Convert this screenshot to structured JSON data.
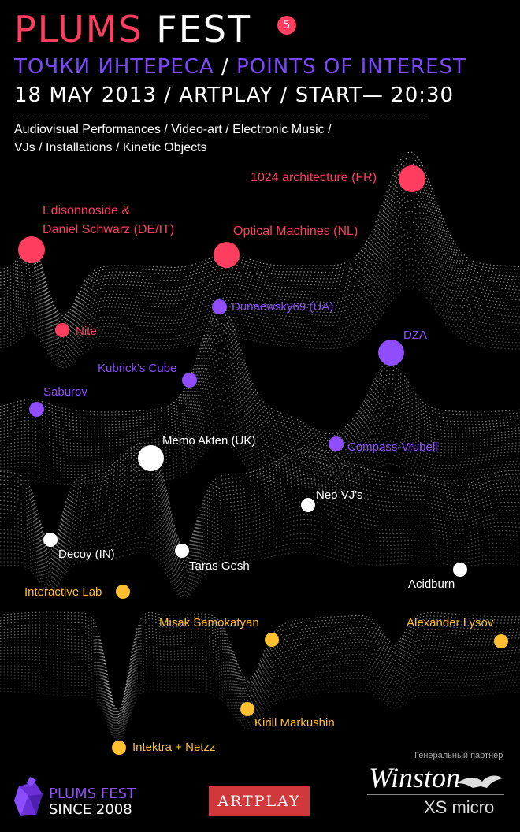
{
  "header": {
    "title_part1": "PLUMS",
    "title_part2": "FEST",
    "edition": "5",
    "subtitle_ru": "ТОЧКИ ИНТЕРЕСА",
    "subtitle_sep": "/",
    "subtitle_en": "POINTS OF INTEREST",
    "dateline": "18 MAY 2013 / ARTPLAY / START— 20:30",
    "description_line1": "Audiovisual Performances / Video-art / Electronic Music /",
    "description_line2": "VJs / Installations / Kinetic Objects"
  },
  "colors": {
    "red": "#ff3d5f",
    "purple": "#8f4dff",
    "white": "#ffffff",
    "yellow": "#ffbf2e"
  },
  "points": [
    {
      "label": "1024 architecture (FR)",
      "color": "red"
    },
    {
      "label": "Edisonnoside &",
      "color": "red"
    },
    {
      "label": "Daniel Schwarz (DE/IT)",
      "color": "red"
    },
    {
      "label": "Optical Machines (NL)",
      "color": "red"
    },
    {
      "label": "Nite",
      "color": "red"
    },
    {
      "label": "Dunaewsky69 (UA)",
      "color": "purple"
    },
    {
      "label": "DZA",
      "color": "purple"
    },
    {
      "label": "Kubrick's Cube",
      "color": "purple"
    },
    {
      "label": "Saburov",
      "color": "purple"
    },
    {
      "label": "Compass-Vrubell",
      "color": "purple"
    },
    {
      "label": "Memo Akten (UK)",
      "color": "white"
    },
    {
      "label": "Neo VJ's",
      "color": "white"
    },
    {
      "label": "Decoy (IN)",
      "color": "white"
    },
    {
      "label": "Taras Gesh",
      "color": "white"
    },
    {
      "label": "Acidburn",
      "color": "white"
    },
    {
      "label": "Interactive Lab",
      "color": "yellow"
    },
    {
      "label": "Misak Samokatyan",
      "color": "yellow"
    },
    {
      "label": "Alexander Lysov",
      "color": "yellow"
    },
    {
      "label": "Kirill Markushin",
      "color": "yellow"
    },
    {
      "label": "Intektra + Netzz",
      "color": "yellow"
    }
  ],
  "footer": {
    "logo_line1": "PLUMS FEST",
    "logo_line2": "SINCE 2008",
    "venue_logo": "ARTPLAY",
    "sponsor_label": "Генеральный партнер",
    "sponsor_brand": "Winston",
    "sponsor_sub": "XS micro",
    "icons": [
      "plum-logo-icon",
      "eagle-icon"
    ]
  }
}
